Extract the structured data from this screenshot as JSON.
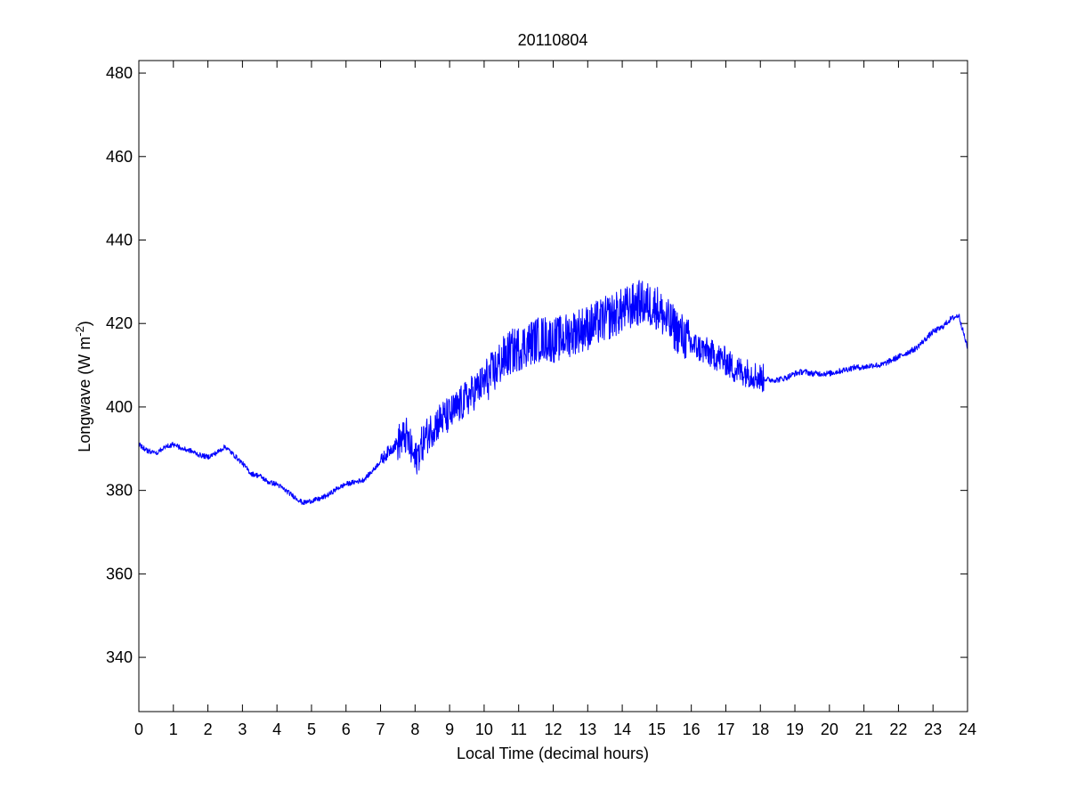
{
  "chart_data": {
    "type": "line",
    "title": "20110804",
    "xlabel": "Local Time (decimal hours)",
    "ylabel": {
      "main": "Longwave (W m",
      "superscript": "-2",
      "close": ")"
    },
    "xlim": [
      0,
      24
    ],
    "ylim": [
      327,
      483
    ],
    "xticks": [
      0,
      1,
      2,
      3,
      4,
      5,
      6,
      7,
      8,
      9,
      10,
      11,
      12,
      13,
      14,
      15,
      16,
      17,
      18,
      19,
      20,
      21,
      22,
      23,
      24
    ],
    "yticks": [
      340,
      360,
      380,
      400,
      420,
      440,
      460,
      480
    ],
    "grid": false,
    "line_color": "#0000ff",
    "series": [
      {
        "x": [
          0,
          0.25,
          0.5,
          0.75,
          1,
          1.25,
          1.5,
          1.75,
          2,
          2.25,
          2.5,
          2.75,
          3,
          3.25,
          3.5,
          3.75,
          4,
          4.25,
          4.5,
          4.75,
          5,
          5.25,
          5.5,
          5.75,
          6,
          6.25,
          6.5,
          6.75,
          7,
          7.25,
          7.5,
          7.75,
          8,
          8.25,
          8.5,
          8.75,
          9,
          9.25,
          9.5,
          9.75,
          10,
          10.25,
          10.5,
          10.75,
          11,
          11.25,
          11.5,
          11.75,
          12,
          12.25,
          12.5,
          12.75,
          13,
          13.25,
          13.5,
          13.75,
          14,
          14.25,
          14.5,
          14.75,
          15,
          15.25,
          15.5,
          15.75,
          16,
          16.25,
          16.5,
          16.75,
          17,
          17.25,
          17.5,
          17.75,
          18,
          18.25,
          18.5,
          18.75,
          19,
          19.25,
          19.5,
          19.75,
          20,
          20.25,
          20.5,
          20.75,
          21,
          21.25,
          21.5,
          21.75,
          22,
          22.25,
          22.5,
          22.75,
          23,
          23.25,
          23.5,
          23.75,
          24
        ],
        "values": [
          391,
          389.5,
          389,
          390.5,
          391,
          390,
          389.5,
          388.5,
          388,
          389,
          390.5,
          388.5,
          386.5,
          384,
          383.5,
          382,
          381.5,
          380,
          378.5,
          377,
          377.5,
          378,
          379,
          380.5,
          381.5,
          382,
          382.5,
          384.5,
          387,
          389.5,
          391.5,
          393,
          387,
          392,
          395,
          397,
          398,
          400,
          402,
          404,
          406,
          408,
          411,
          413,
          414,
          415,
          416,
          416.5,
          416,
          416.5,
          417.5,
          418.5,
          419,
          420,
          421,
          422,
          423,
          424,
          425,
          424.5,
          424,
          421,
          419,
          417,
          415,
          414,
          413,
          412,
          411,
          409,
          408.5,
          408,
          407,
          406.5,
          406.5,
          407,
          408,
          408.5,
          408,
          408,
          408,
          408.5,
          409,
          409.5,
          409.5,
          410,
          410,
          411,
          412,
          413,
          414,
          416,
          418,
          419,
          421,
          422,
          414
        ]
      }
    ]
  }
}
